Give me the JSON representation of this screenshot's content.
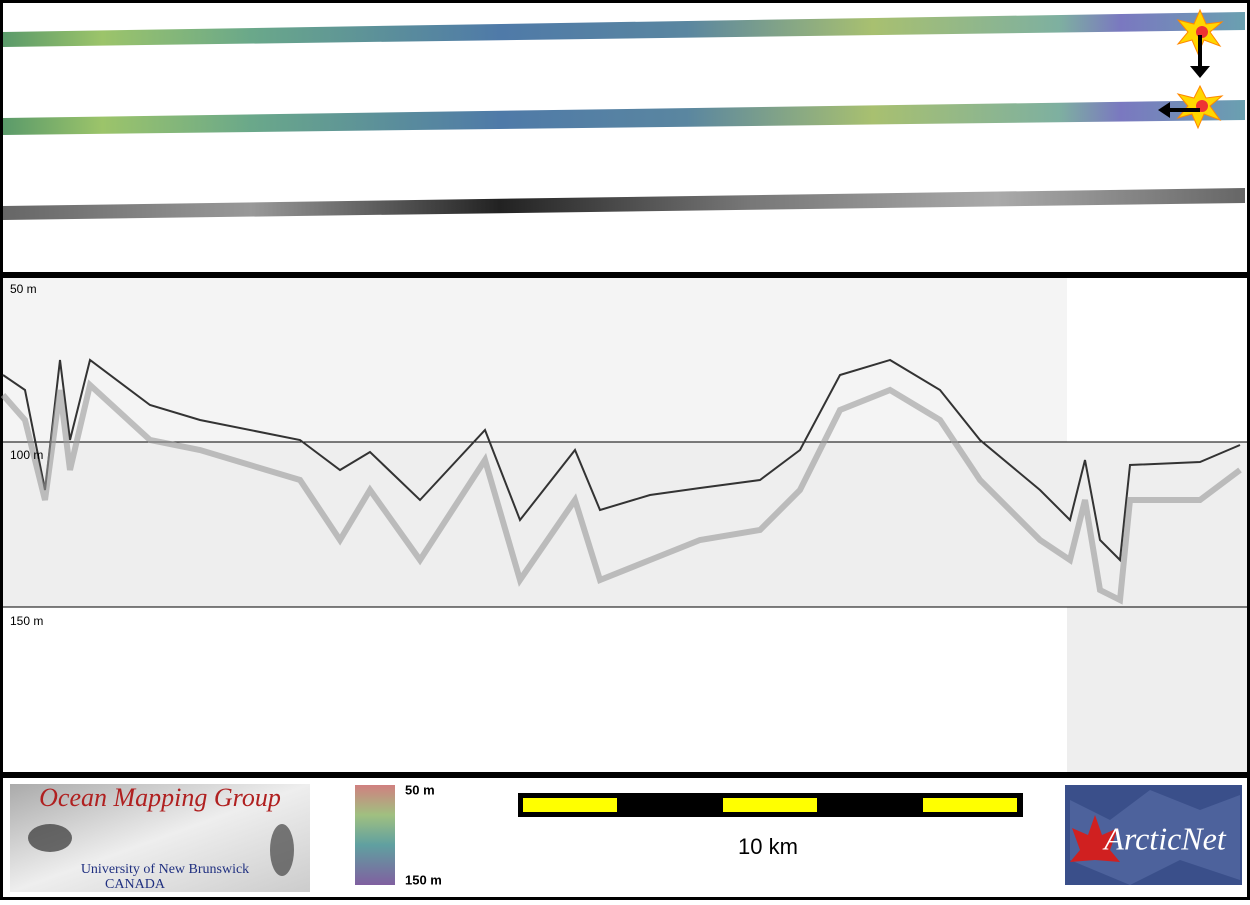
{
  "profile": {
    "depth_labels": [
      "50 m",
      "100 m",
      "150 m"
    ]
  },
  "footer": {
    "logo": {
      "title": "Ocean Mapping Group",
      "line1": "University of New Brunswick",
      "line2": "CANADA"
    },
    "colorbar": {
      "top": "50 m",
      "bottom": "150 m"
    },
    "scale_bar": "10 km",
    "partner_logo": "ArcticNet"
  }
}
